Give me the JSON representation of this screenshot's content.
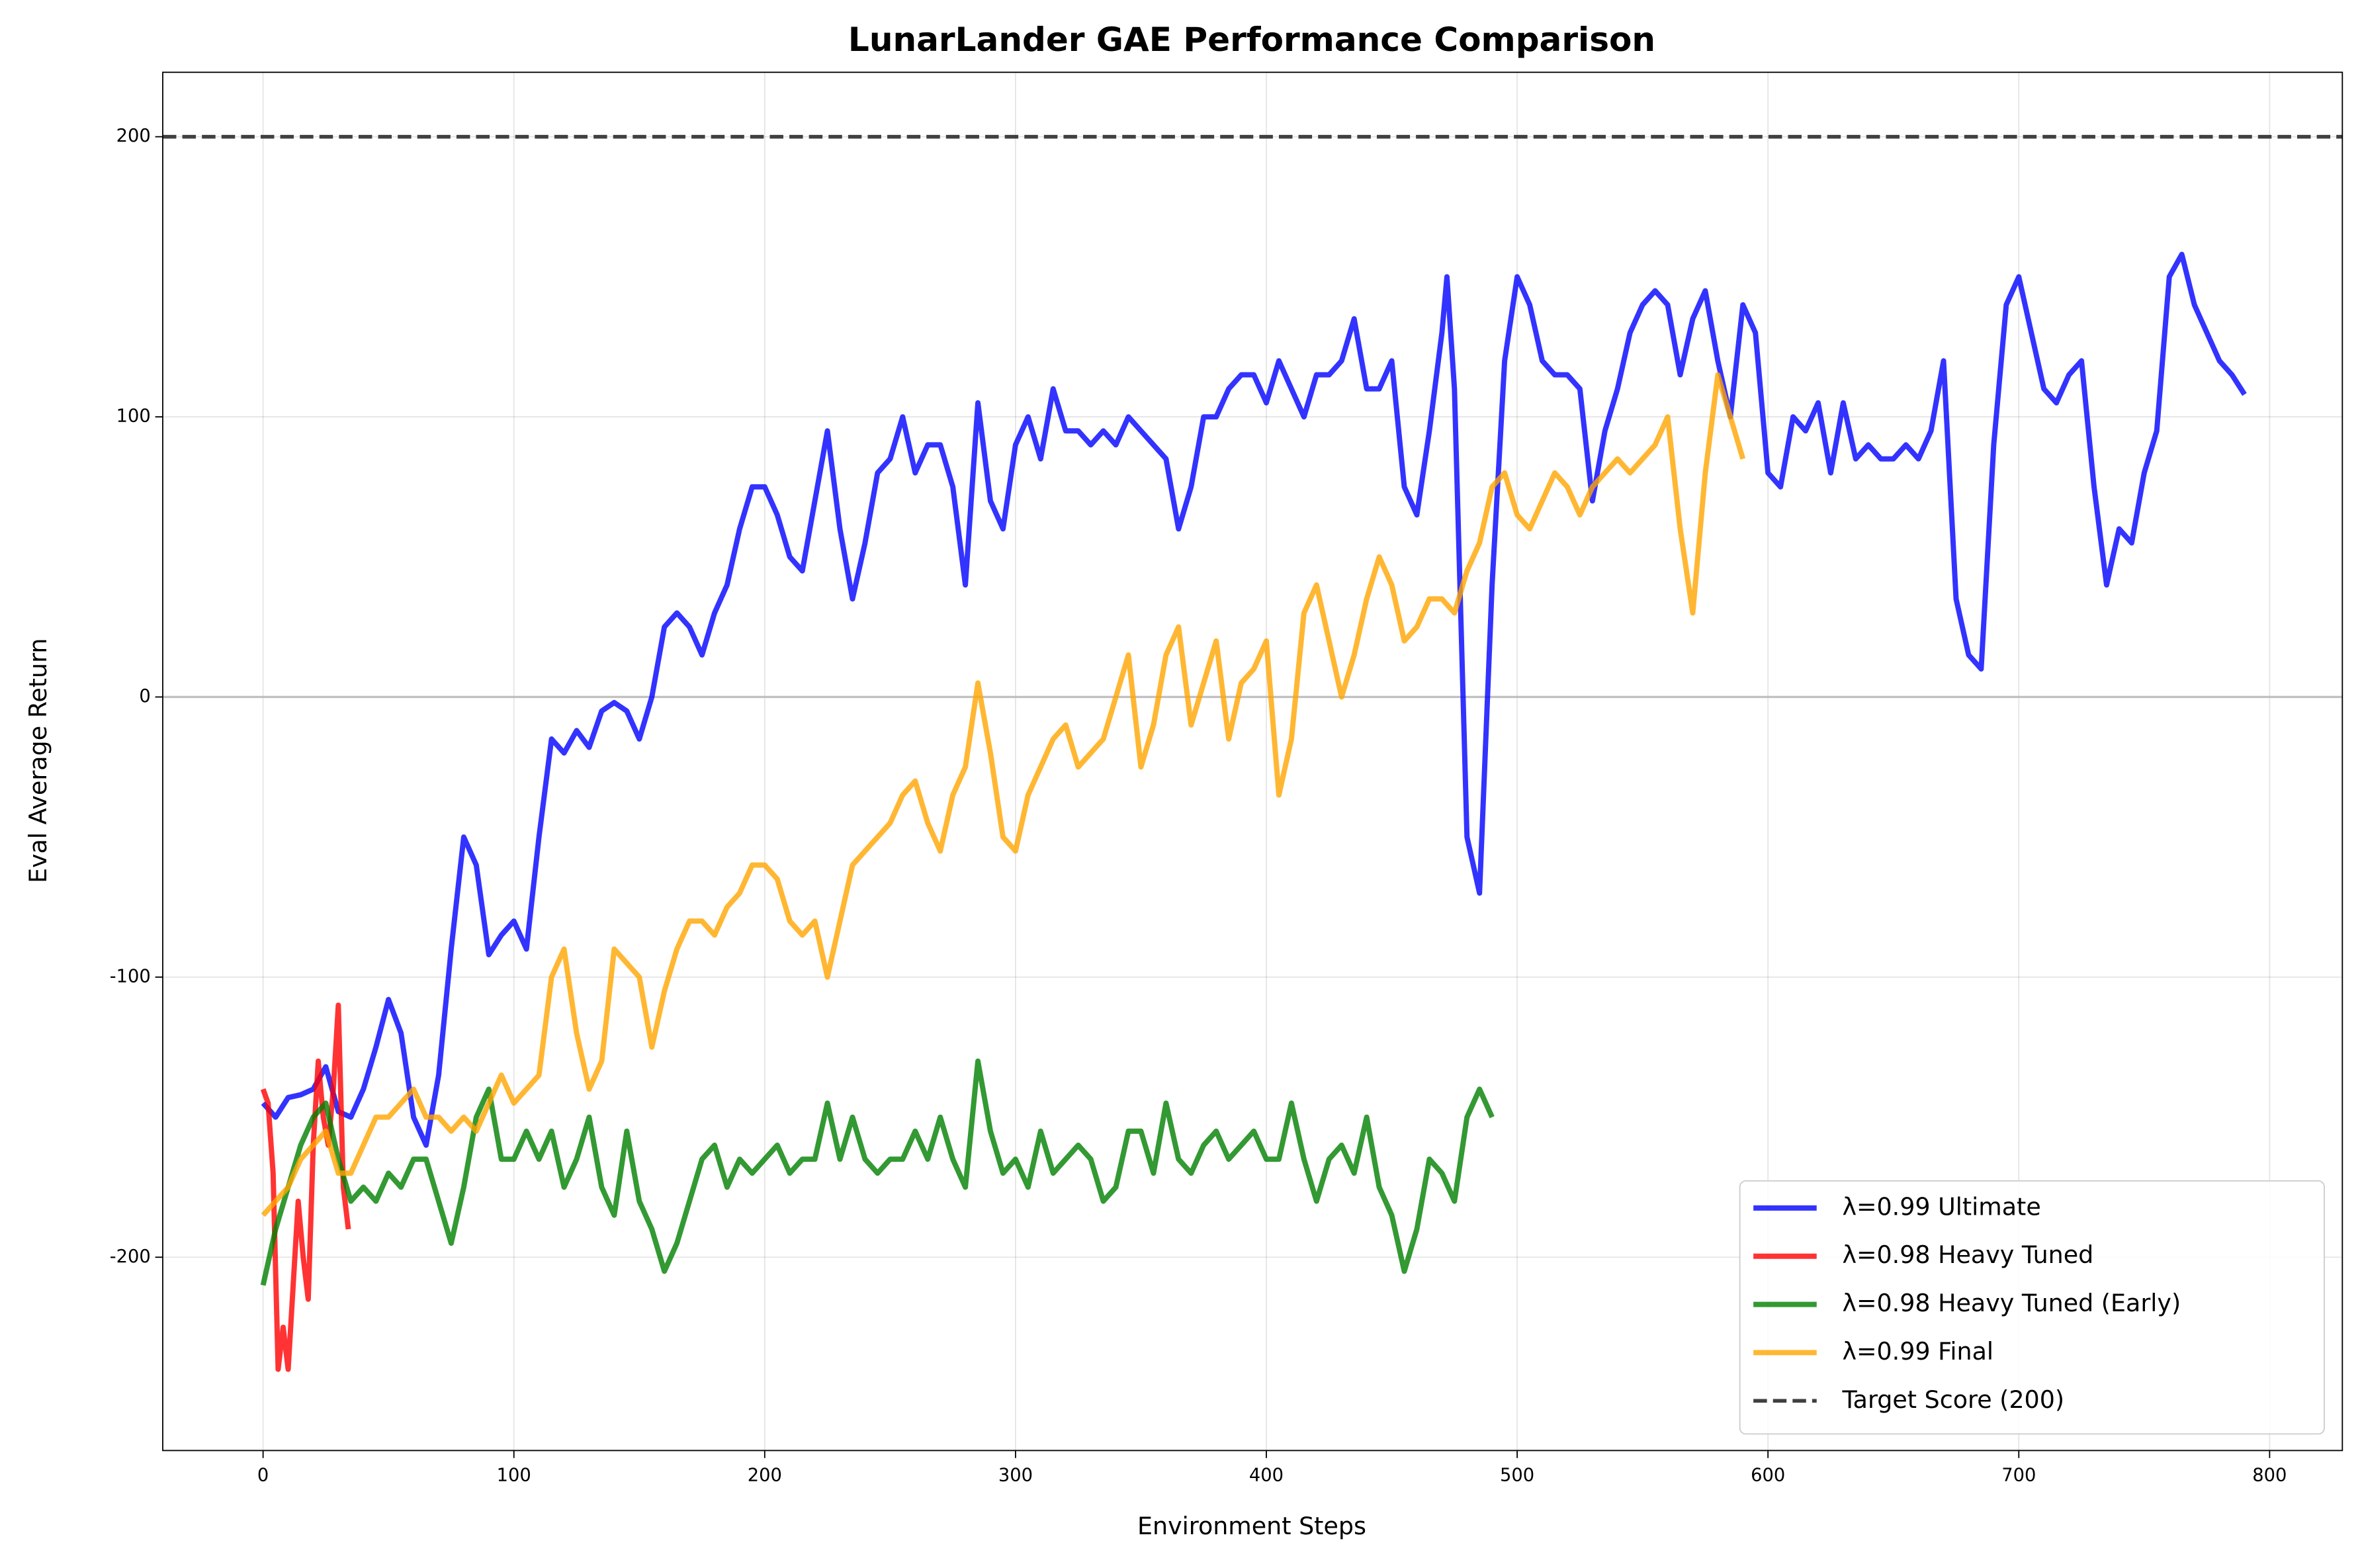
{
  "chart_data": {
    "type": "line",
    "title": "LunarLander GAE Performance Comparison",
    "xlabel": "Environment Steps",
    "ylabel": "Eval Average Return",
    "xlim": [
      -40,
      829
    ],
    "ylim": [
      -269,
      223
    ],
    "xticks": [
      0,
      100,
      200,
      300,
      400,
      500,
      600,
      700,
      800
    ],
    "yticks": [
      -200,
      -100,
      0,
      100,
      200
    ],
    "grid": true,
    "legend": "lower right",
    "hlines": [
      {
        "y": 0,
        "color": "#bbbbbb"
      },
      {
        "name": "Target Score (200)",
        "y": 200,
        "color": "#404040",
        "dashed": true
      }
    ],
    "series": [
      {
        "name": "λ=0.99 Ultimate",
        "color": "#0000ff",
        "x": [
          0,
          5,
          10,
          15,
          20,
          25,
          30,
          35,
          40,
          45,
          50,
          55,
          60,
          65,
          70,
          75,
          80,
          85,
          90,
          95,
          100,
          105,
          110,
          115,
          120,
          125,
          130,
          135,
          140,
          145,
          150,
          155,
          160,
          165,
          170,
          175,
          180,
          185,
          190,
          195,
          200,
          205,
          210,
          215,
          220,
          225,
          230,
          235,
          240,
          245,
          250,
          255,
          260,
          265,
          270,
          275,
          280,
          285,
          290,
          295,
          300,
          305,
          310,
          315,
          320,
          325,
          330,
          335,
          340,
          345,
          350,
          355,
          360,
          365,
          370,
          375,
          380,
          385,
          390,
          395,
          400,
          405,
          410,
          415,
          420,
          425,
          430,
          435,
          440,
          445,
          450,
          455,
          460,
          465,
          470,
          472,
          475,
          480,
          485,
          490,
          495,
          500,
          505,
          510,
          515,
          520,
          525,
          530,
          535,
          540,
          545,
          550,
          555,
          560,
          565,
          570,
          575,
          580,
          585,
          590,
          595,
          600,
          605,
          610,
          615,
          620,
          625,
          630,
          635,
          640,
          645,
          650,
          655,
          660,
          665,
          670,
          675,
          680,
          685,
          690,
          695,
          700,
          705,
          710,
          715,
          720,
          725,
          730,
          735,
          740,
          745,
          750,
          755,
          760,
          765,
          770,
          775,
          780,
          785,
          790
        ],
        "values": [
          -145,
          -150,
          -143,
          -142,
          -140,
          -132,
          -148,
          -150,
          -140,
          -125,
          -108,
          -120,
          -150,
          -160,
          -135,
          -90,
          -50,
          -60,
          -92,
          -85,
          -80,
          -90,
          -50,
          -15,
          -20,
          -12,
          -18,
          -5,
          -2,
          -5,
          -15,
          0,
          25,
          30,
          25,
          15,
          30,
          40,
          60,
          75,
          75,
          65,
          50,
          45,
          70,
          95,
          60,
          35,
          55,
          80,
          85,
          100,
          80,
          90,
          90,
          75,
          40,
          105,
          70,
          60,
          90,
          100,
          85,
          110,
          95,
          95,
          90,
          95,
          90,
          100,
          95,
          90,
          85,
          60,
          75,
          100,
          100,
          110,
          115,
          115,
          105,
          120,
          110,
          100,
          115,
          115,
          120,
          135,
          110,
          110,
          120,
          75,
          65,
          95,
          130,
          150,
          110,
          -50,
          -70,
          40,
          120,
          150,
          140,
          120,
          115,
          115,
          110,
          70,
          95,
          110,
          130,
          140,
          145,
          140,
          115,
          135,
          145,
          120,
          100,
          140,
          130,
          80,
          75,
          100,
          95,
          105,
          80,
          105,
          85,
          90,
          85,
          85,
          90,
          85,
          95,
          120,
          35,
          15,
          10,
          90,
          140,
          150,
          130,
          110,
          105,
          115,
          120,
          75,
          40,
          60,
          55,
          80,
          95,
          150,
          158,
          140,
          130,
          120,
          115,
          108
        ]
      },
      {
        "name": "λ=0.98 Heavy Tuned",
        "color": "#ff0000",
        "x": [
          0,
          2,
          4,
          6,
          8,
          10,
          12,
          14,
          16,
          18,
          20,
          22,
          24,
          26,
          28,
          30,
          32,
          34
        ],
        "values": [
          -140,
          -145,
          -170,
          -240,
          -225,
          -240,
          -210,
          -180,
          -200,
          -215,
          -160,
          -130,
          -150,
          -160,
          -140,
          -110,
          -175,
          -190
        ]
      },
      {
        "name": "λ=0.98 Heavy Tuned (Early)",
        "color": "#008000",
        "x": [
          0,
          5,
          10,
          15,
          20,
          25,
          30,
          35,
          40,
          45,
          50,
          55,
          60,
          65,
          70,
          75,
          80,
          85,
          90,
          95,
          100,
          105,
          110,
          115,
          120,
          125,
          130,
          135,
          140,
          145,
          150,
          155,
          160,
          165,
          170,
          175,
          180,
          185,
          190,
          195,
          200,
          205,
          210,
          215,
          220,
          225,
          230,
          235,
          240,
          245,
          250,
          255,
          260,
          265,
          270,
          275,
          280,
          285,
          290,
          295,
          300,
          305,
          310,
          315,
          320,
          325,
          330,
          335,
          340,
          345,
          350,
          355,
          360,
          365,
          370,
          375,
          380,
          385,
          390,
          395,
          400,
          405,
          410,
          415,
          420,
          425,
          430,
          435,
          440,
          445,
          450,
          455,
          460,
          465,
          470,
          475,
          480,
          485,
          490
        ],
        "values": [
          -210,
          -190,
          -175,
          -160,
          -150,
          -145,
          -165,
          -180,
          -175,
          -180,
          -170,
          -175,
          -165,
          -165,
          -180,
          -195,
          -175,
          -150,
          -140,
          -165,
          -165,
          -155,
          -165,
          -155,
          -175,
          -165,
          -150,
          -175,
          -185,
          -155,
          -180,
          -190,
          -205,
          -195,
          -180,
          -165,
          -160,
          -175,
          -165,
          -170,
          -165,
          -160,
          -170,
          -165,
          -165,
          -145,
          -165,
          -150,
          -165,
          -170,
          -165,
          -165,
          -155,
          -165,
          -150,
          -165,
          -175,
          -130,
          -155,
          -170,
          -165,
          -175,
          -155,
          -170,
          -165,
          -160,
          -165,
          -180,
          -175,
          -155,
          -155,
          -170,
          -145,
          -165,
          -170,
          -160,
          -155,
          -165,
          -160,
          -155,
          -165,
          -165,
          -145,
          -165,
          -180,
          -165,
          -160,
          -170,
          -150,
          -175,
          -185,
          -205,
          -190,
          -165,
          -170,
          -180,
          -150,
          -140,
          -150
        ]
      },
      {
        "name": "λ=0.99 Final",
        "color": "#ffa500",
        "x": [
          0,
          5,
          10,
          15,
          20,
          25,
          30,
          35,
          40,
          45,
          50,
          55,
          60,
          65,
          70,
          75,
          80,
          85,
          90,
          95,
          100,
          105,
          110,
          115,
          120,
          125,
          130,
          135,
          140,
          145,
          150,
          155,
          160,
          165,
          170,
          175,
          180,
          185,
          190,
          195,
          200,
          205,
          210,
          215,
          220,
          225,
          230,
          235,
          240,
          245,
          250,
          255,
          260,
          265,
          270,
          275,
          280,
          285,
          290,
          295,
          300,
          305,
          310,
          315,
          320,
          325,
          330,
          335,
          340,
          345,
          350,
          355,
          360,
          365,
          370,
          375,
          380,
          385,
          390,
          395,
          400,
          405,
          410,
          415,
          420,
          425,
          430,
          435,
          440,
          445,
          450,
          455,
          460,
          465,
          470,
          475,
          480,
          485,
          490,
          495,
          500,
          505,
          510,
          515,
          520,
          525,
          530,
          535,
          540,
          545,
          550,
          555,
          560,
          565,
          570,
          575,
          580,
          585,
          590
        ],
        "values": [
          -185,
          -180,
          -175,
          -165,
          -160,
          -155,
          -170,
          -170,
          -160,
          -150,
          -150,
          -145,
          -140,
          -150,
          -150,
          -155,
          -150,
          -155,
          -145,
          -135,
          -145,
          -140,
          -135,
          -100,
          -90,
          -120,
          -140,
          -130,
          -90,
          -95,
          -100,
          -125,
          -105,
          -90,
          -80,
          -80,
          -85,
          -75,
          -70,
          -60,
          -60,
          -65,
          -80,
          -85,
          -80,
          -100,
          -80,
          -60,
          -55,
          -50,
          -45,
          -35,
          -30,
          -45,
          -55,
          -35,
          -25,
          5,
          -20,
          -50,
          -55,
          -35,
          -25,
          -15,
          -10,
          -25,
          -20,
          -15,
          0,
          15,
          -25,
          -10,
          15,
          25,
          -10,
          5,
          20,
          -15,
          5,
          10,
          20,
          -35,
          -15,
          30,
          40,
          20,
          0,
          15,
          35,
          50,
          40,
          20,
          25,
          35,
          35,
          30,
          45,
          55,
          75,
          80,
          65,
          60,
          70,
          80,
          75,
          65,
          75,
          80,
          85,
          80,
          85,
          90,
          100,
          60,
          30,
          80,
          115,
          100,
          85
        ]
      }
    ]
  }
}
